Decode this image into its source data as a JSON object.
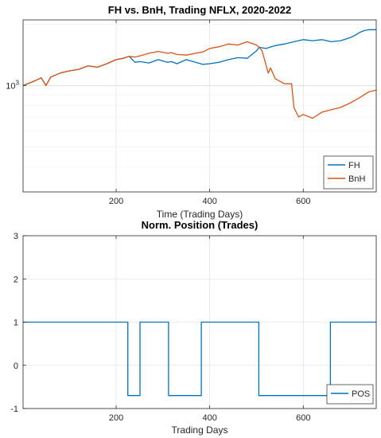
{
  "chart_data": [
    {
      "type": "line",
      "title": "FH vs. BnH, Trading NFLX, 2020-2022",
      "xlabel": "Time (Trading Days)",
      "ylabel": "",
      "yscale": "log",
      "xlim": [
        1,
        756
      ],
      "ylim": [
        300,
        2100
      ],
      "xticks": [
        200,
        400,
        600
      ],
      "yticks": [
        {
          "value": 1000,
          "label": "10",
          "exp": "3"
        }
      ],
      "grid": true,
      "legend": "bottom-right",
      "colors": {
        "FH": "#0072BD",
        "BnH": "#D95319"
      },
      "series": [
        {
          "name": "FH",
          "x": [
            1,
            20,
            40,
            50,
            60,
            80,
            100,
            120,
            140,
            160,
            180,
            200,
            215,
            228,
            240,
            252,
            270,
            290,
            310,
            318,
            330,
            350,
            370,
            385,
            400,
            420,
            440,
            460,
            480,
            500,
            506,
            520,
            540,
            560,
            580,
            600,
            620,
            640,
            660,
            680,
            700,
            710,
            720,
            730,
            740,
            756
          ],
          "y": [
            1000,
            1040,
            1090,
            1000,
            1100,
            1150,
            1180,
            1200,
            1250,
            1230,
            1280,
            1340,
            1360,
            1390,
            1300,
            1310,
            1290,
            1340,
            1300,
            1310,
            1280,
            1340,
            1300,
            1270,
            1280,
            1300,
            1340,
            1370,
            1360,
            1480,
            1540,
            1520,
            1570,
            1600,
            1640,
            1680,
            1660,
            1680,
            1640,
            1660,
            1720,
            1760,
            1820,
            1860,
            1880,
            1880
          ]
        },
        {
          "name": "BnH",
          "x": [
            1,
            20,
            40,
            50,
            60,
            80,
            100,
            120,
            140,
            160,
            180,
            200,
            215,
            228,
            240,
            252,
            270,
            290,
            310,
            318,
            330,
            350,
            370,
            385,
            400,
            420,
            440,
            460,
            480,
            500,
            506,
            512,
            518,
            525,
            530,
            540,
            560,
            575,
            580,
            590,
            600,
            620,
            640,
            660,
            680,
            700,
            720,
            740,
            756
          ],
          "y": [
            1000,
            1040,
            1090,
            1000,
            1100,
            1150,
            1180,
            1200,
            1250,
            1230,
            1280,
            1340,
            1360,
            1390,
            1380,
            1400,
            1440,
            1470,
            1440,
            1450,
            1420,
            1410,
            1440,
            1460,
            1520,
            1550,
            1600,
            1580,
            1640,
            1580,
            1540,
            1480,
            1320,
            1150,
            1220,
            1080,
            1020,
            1020,
            780,
            700,
            720,
            690,
            740,
            760,
            780,
            820,
            870,
            930,
            950
          ]
        }
      ]
    },
    {
      "type": "line",
      "title": "Norm. Position (Trades)",
      "xlabel": "Trading Days",
      "ylabel": "",
      "xlim": [
        1,
        756
      ],
      "ylim": [
        -1,
        3
      ],
      "xticks": [
        200,
        400,
        600
      ],
      "yticks": [
        -1,
        0,
        1,
        2,
        3
      ],
      "grid": true,
      "legend": "bottom-right",
      "colors": {
        "POS": "#0072BD"
      },
      "series": [
        {
          "name": "POS",
          "x": [
            1,
            225,
            225,
            251,
            251,
            312,
            312,
            382,
            382,
            505,
            505,
            658,
            658,
            756
          ],
          "y": [
            1,
            1,
            -0.7,
            -0.7,
            1,
            1,
            -0.7,
            -0.7,
            1,
            1,
            -0.7,
            -0.7,
            1,
            1
          ]
        }
      ]
    }
  ]
}
